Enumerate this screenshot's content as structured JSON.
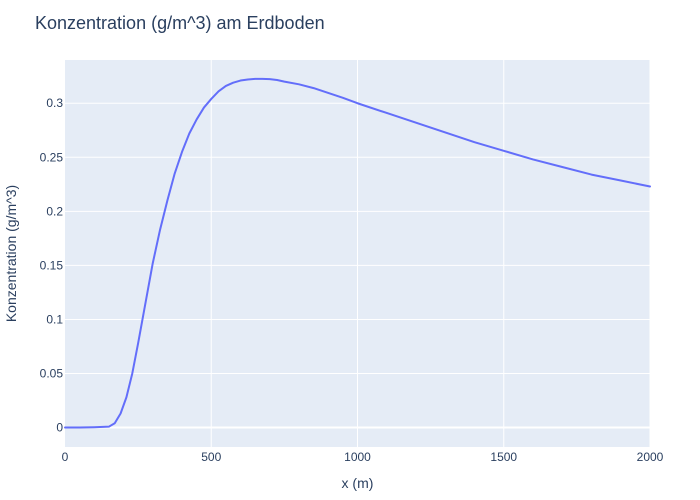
{
  "chart_data": {
    "type": "line",
    "title": "Konzentration (g/m^3) am Erdboden",
    "xlabel": "x (m)",
    "ylabel": "Konzentration (g/m^3)",
    "xlim": [
      0,
      2000
    ],
    "ylim": [
      -0.018,
      0.34
    ],
    "x_ticks": [
      0,
      500,
      1000,
      1500,
      2000
    ],
    "y_ticks": [
      0,
      0.05,
      0.1,
      0.15,
      0.2,
      0.25,
      0.3
    ],
    "grid": true,
    "colors": {
      "line": "#636efa",
      "plot_background": "#e5ecf6",
      "text": "#2a3f5f"
    },
    "series": [
      {
        "x": [
          0,
          50,
          100,
          150,
          170,
          190,
          210,
          230,
          250,
          275,
          300,
          325,
          350,
          375,
          400,
          425,
          450,
          475,
          500,
          525,
          550,
          575,
          600,
          625,
          650,
          675,
          700,
          725,
          750,
          800,
          850,
          900,
          950,
          1000,
          1100,
          1200,
          1300,
          1400,
          1500,
          1600,
          1700,
          1800,
          1900,
          2000
        ],
        "y": [
          0,
          0,
          0.0003,
          0.0008,
          0.004,
          0.013,
          0.028,
          0.05,
          0.078,
          0.115,
          0.152,
          0.183,
          0.21,
          0.235,
          0.255,
          0.272,
          0.285,
          0.296,
          0.304,
          0.311,
          0.316,
          0.319,
          0.321,
          0.322,
          0.3225,
          0.3225,
          0.3223,
          0.3215,
          0.32,
          0.3175,
          0.314,
          0.3095,
          0.305,
          0.3,
          0.291,
          0.282,
          0.273,
          0.264,
          0.256,
          0.248,
          0.241,
          0.234,
          0.2285,
          0.223
        ]
      }
    ]
  }
}
